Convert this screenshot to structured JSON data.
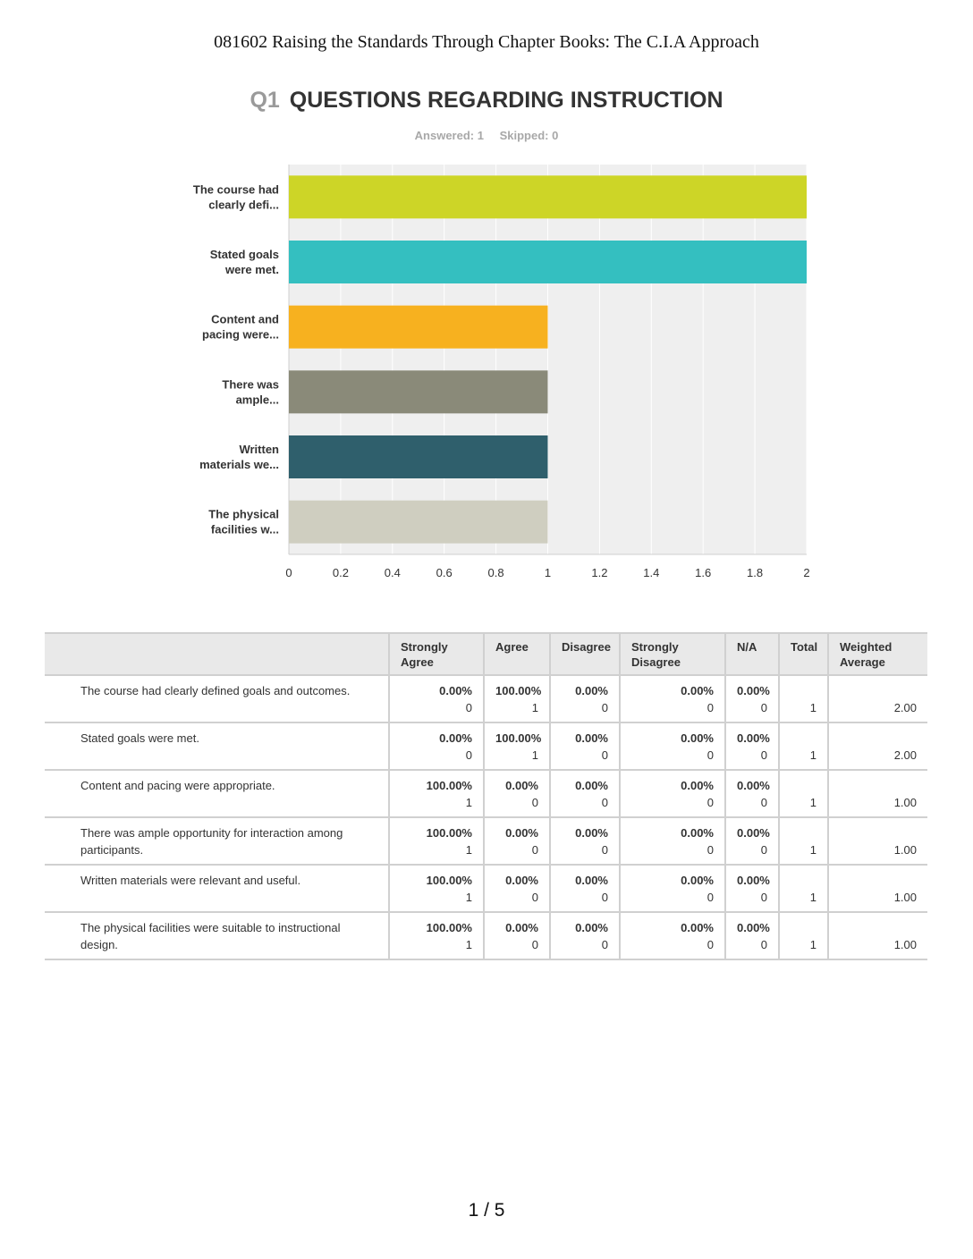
{
  "document_header": "081602 Raising the Standards Through Chapter Books: The C.I.A Approach",
  "question": {
    "number": "Q1",
    "title": "QUESTIONS REGARDING INSTRUCTION",
    "answered": "Answered: 1",
    "skipped": "Skipped: 0"
  },
  "chart_data": {
    "type": "bar",
    "orientation": "horizontal",
    "categories": [
      [
        "The course had",
        "clearly defi..."
      ],
      [
        "Stated goals",
        "were met."
      ],
      [
        "Content and",
        "pacing were..."
      ],
      [
        "There was",
        "ample..."
      ],
      [
        "Written",
        "materials we..."
      ],
      [
        "The physical",
        "facilities w..."
      ]
    ],
    "values": [
      2,
      2,
      1,
      1,
      1,
      1
    ],
    "colors": [
      "#cdd527",
      "#34bfc0",
      "#f7b11f",
      "#8a8a79",
      "#2f5f6c",
      "#cfcec0"
    ],
    "xlim": [
      0,
      2
    ],
    "xticks": [
      "0",
      "0.2",
      "0.4",
      "0.6",
      "0.8",
      "1",
      "1.2",
      "1.4",
      "1.6",
      "1.8",
      "2"
    ],
    "grid": true
  },
  "table": {
    "headers": [
      "",
      "Strongly Agree",
      "Agree",
      "Disagree",
      "Strongly Disagree",
      "N/A",
      "Total",
      "Weighted Average"
    ],
    "rows": [
      {
        "label": "The course had clearly defined goals and outcomes.",
        "cells": [
          [
            "0.00%",
            "0"
          ],
          [
            "100.00%",
            "1"
          ],
          [
            "0.00%",
            "0"
          ],
          [
            "0.00%",
            "0"
          ],
          [
            "0.00%",
            "0"
          ]
        ],
        "total": "1",
        "weighted": "2.00"
      },
      {
        "label": "Stated goals were met.",
        "cells": [
          [
            "0.00%",
            "0"
          ],
          [
            "100.00%",
            "1"
          ],
          [
            "0.00%",
            "0"
          ],
          [
            "0.00%",
            "0"
          ],
          [
            "0.00%",
            "0"
          ]
        ],
        "total": "1",
        "weighted": "2.00"
      },
      {
        "label": "Content and pacing were appropriate.",
        "cells": [
          [
            "100.00%",
            "1"
          ],
          [
            "0.00%",
            "0"
          ],
          [
            "0.00%",
            "0"
          ],
          [
            "0.00%",
            "0"
          ],
          [
            "0.00%",
            "0"
          ]
        ],
        "total": "1",
        "weighted": "1.00"
      },
      {
        "label": "There was ample opportunity for interaction among participants.",
        "cells": [
          [
            "100.00%",
            "1"
          ],
          [
            "0.00%",
            "0"
          ],
          [
            "0.00%",
            "0"
          ],
          [
            "0.00%",
            "0"
          ],
          [
            "0.00%",
            "0"
          ]
        ],
        "total": "1",
        "weighted": "1.00"
      },
      {
        "label": "Written materials were relevant and useful.",
        "cells": [
          [
            "100.00%",
            "1"
          ],
          [
            "0.00%",
            "0"
          ],
          [
            "0.00%",
            "0"
          ],
          [
            "0.00%",
            "0"
          ],
          [
            "0.00%",
            "0"
          ]
        ],
        "total": "1",
        "weighted": "1.00"
      },
      {
        "label": "The physical facilities were suitable to instructional design.",
        "cells": [
          [
            "100.00%",
            "1"
          ],
          [
            "0.00%",
            "0"
          ],
          [
            "0.00%",
            "0"
          ],
          [
            "0.00%",
            "0"
          ],
          [
            "0.00%",
            "0"
          ]
        ],
        "total": "1",
        "weighted": "1.00"
      }
    ]
  },
  "page_number": "1 / 5"
}
